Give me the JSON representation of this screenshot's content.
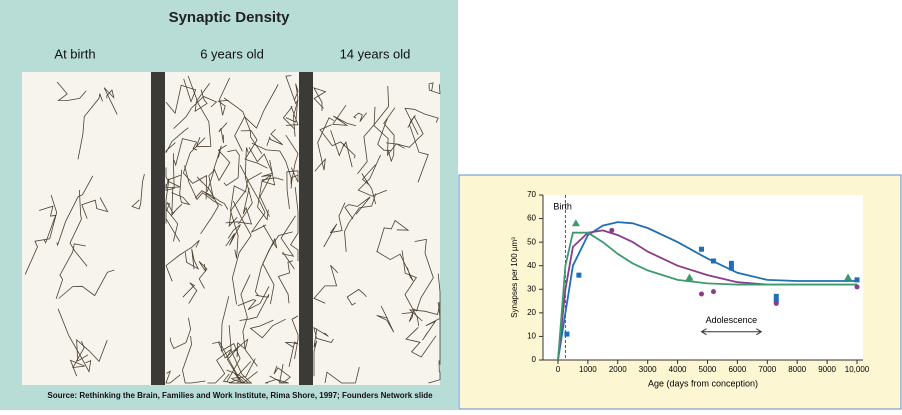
{
  "left_panel": {
    "title": "Synaptic Density",
    "labels": [
      "At birth",
      "6 years old",
      "14 years old"
    ],
    "source": "Source: Rethinking the Brain, Families and Work Institute, Rima Shore, 1997; Founders Network slide"
  },
  "chart_data": {
    "type": "line",
    "x_label": "Age (days from conception)",
    "y_label": "Synapses per 100 µm³",
    "xlim": [
      -500,
      10200
    ],
    "ylim": [
      0,
      70
    ],
    "xticks": [
      0,
      1000,
      2000,
      3000,
      4000,
      5000,
      6000,
      7000,
      8000,
      9000,
      {
        "value": 10000,
        "label": "10,000"
      }
    ],
    "yticks": [
      0,
      10,
      20,
      30,
      40,
      50,
      60,
      70
    ],
    "x": [
      0,
      250,
      500,
      1000,
      1500,
      2000,
      2500,
      3000,
      4000,
      5000,
      6000,
      7000,
      8000,
      9000,
      10000
    ],
    "series": [
      {
        "color": "#1f6fb4",
        "values": [
          0,
          20,
          40,
          53,
          57,
          58.5,
          58,
          56,
          50,
          43,
          37,
          34,
          33.5,
          33.5,
          33.5
        ]
      },
      {
        "color": "#8a3c8a",
        "values": [
          0,
          30,
          48,
          54,
          55,
          53,
          50,
          46,
          40,
          36,
          33,
          32,
          32,
          32,
          32
        ]
      },
      {
        "color": "#3d9a70",
        "values": [
          0,
          40,
          54,
          54,
          50,
          45,
          41,
          38,
          34,
          32.5,
          32,
          32,
          32,
          32,
          32
        ]
      }
    ],
    "points": [
      {
        "color": "#1f6fb4",
        "marker": "square",
        "x": [
          300,
          700,
          4800,
          5200,
          5800,
          5800,
          7300,
          7300,
          10000
        ],
        "values": [
          11,
          36,
          47,
          42,
          41,
          39,
          27,
          25,
          34
        ]
      },
      {
        "color": "#8a3c8a",
        "marker": "circle",
        "x": [
          1800,
          4800,
          5200,
          7300,
          10000
        ],
        "values": [
          55,
          28,
          29,
          24,
          31
        ]
      },
      {
        "color": "#3d9a70",
        "marker": "triangle",
        "x": [
          600,
          4400,
          9700
        ],
        "values": [
          58,
          35,
          35
        ]
      }
    ],
    "annotations": [
      {
        "text": "Birth",
        "x": 250
      },
      {
        "text": "Adolescence",
        "x": [
          4800,
          6800
        ],
        "y": 12
      }
    ]
  }
}
